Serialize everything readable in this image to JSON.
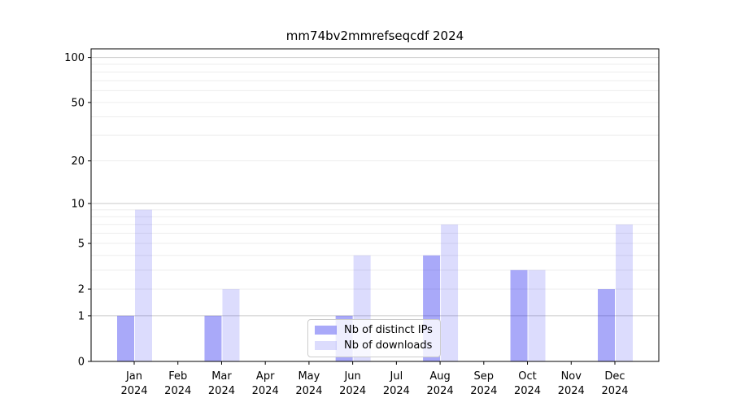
{
  "chart_data": {
    "type": "bar",
    "title": "mm74bv2mmrefseqcdf 2024",
    "categories": [
      "Jan",
      "Feb",
      "Mar",
      "Apr",
      "May",
      "Jun",
      "Jul",
      "Aug",
      "Sep",
      "Oct",
      "Nov",
      "Dec"
    ],
    "category_year": "2024",
    "series": [
      {
        "name": "Nb of distinct IPs",
        "color": "rgba(41,41,241,0.40)",
        "values": [
          1,
          0,
          1,
          0,
          0,
          1,
          0,
          4,
          0,
          3,
          0,
          2
        ]
      },
      {
        "name": "Nb of downloads",
        "color": "rgba(41,41,241,0.165)",
        "values": [
          9,
          0,
          2,
          0,
          0,
          4,
          0,
          7,
          0,
          3,
          0,
          7
        ]
      }
    ],
    "xlabel": "",
    "ylabel": "",
    "scale": "log1p",
    "ylim": [
      0,
      115
    ],
    "y_ticks": [
      0,
      1,
      2,
      5,
      10,
      20,
      50,
      100
    ],
    "y_major_gridlines": [
      1,
      10,
      100
    ],
    "y_minor_gridlines": [
      2,
      3,
      4,
      5,
      6,
      7,
      8,
      9,
      20,
      30,
      40,
      50,
      60,
      70,
      80,
      90
    ],
    "grid": true,
    "legend_position": "lower center",
    "colors": {
      "major_grid": "#c9c9c9",
      "minor_grid": "#ededed",
      "spine": "#000000",
      "text": "#000000"
    }
  }
}
